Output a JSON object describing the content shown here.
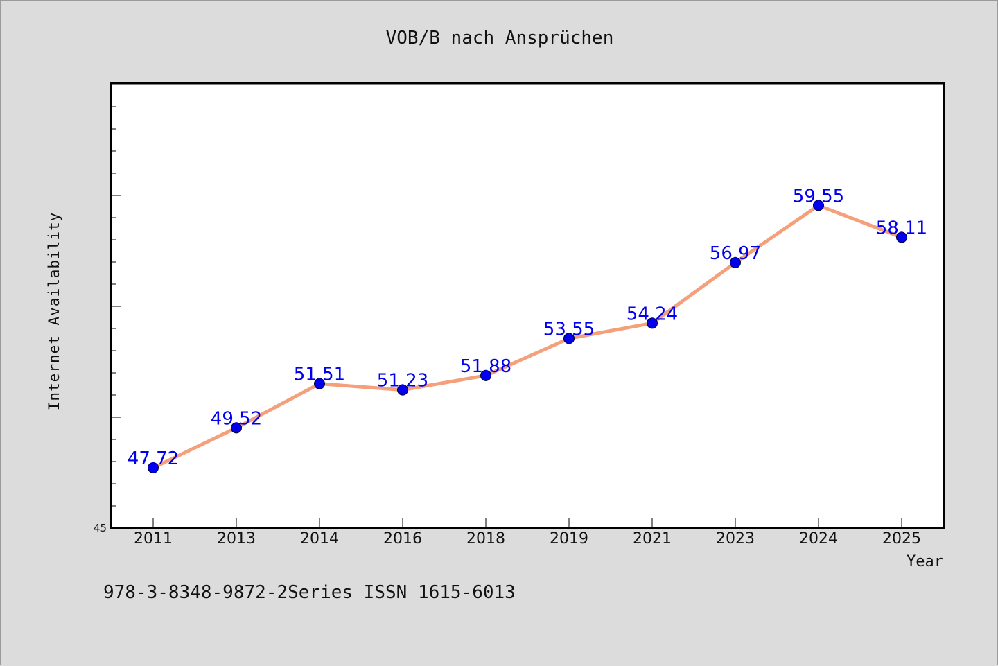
{
  "chart_data": {
    "type": "line",
    "title": "VOB/B nach Ansprüchen",
    "xlabel": "Year",
    "ylabel": "Internet Availability",
    "categories": [
      "2011",
      "2013",
      "2014",
      "2016",
      "2018",
      "2019",
      "2021",
      "2023",
      "2024",
      "2025"
    ],
    "series": [
      {
        "values": [
          47.72,
          49.52,
          51.51,
          51.23,
          51.88,
          53.55,
          54.24,
          56.97,
          59.55,
          58.11
        ],
        "labels": [
          "47.72",
          "49.52",
          "51.51",
          "51.23",
          "51.88",
          "53.55",
          "54.24",
          "56.97",
          "59.55",
          "58.11"
        ]
      }
    ],
    "ylim": [
      45,
      65
    ],
    "y_tick_labels": [
      "45"
    ],
    "grid": false,
    "line_color": "#f4a07a",
    "marker_color": "#0000ee",
    "label_color": "#0000ee"
  },
  "footer": {
    "text": "978-3-8348-9872-2Series ISSN 1615-6013"
  }
}
